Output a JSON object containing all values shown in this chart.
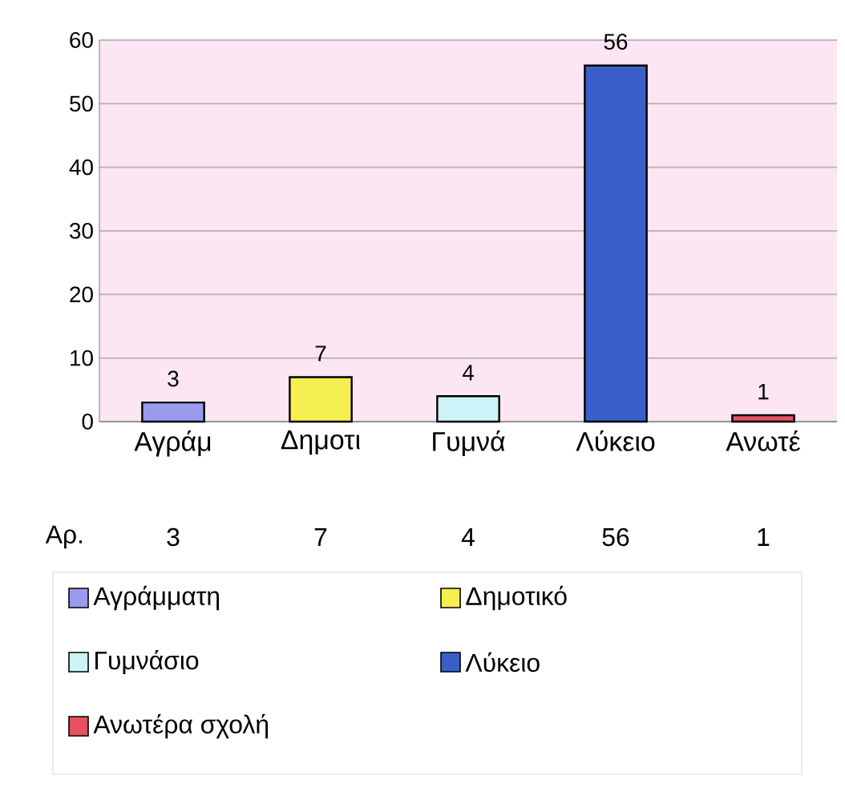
{
  "chart_data": {
    "type": "bar",
    "categories": [
      "Αγράμ",
      "Δημοτι",
      "Γυμνά",
      "Λύκειο",
      "Ανωτέ"
    ],
    "series": [
      {
        "name": "Αγράμματη",
        "color": "#9999ee",
        "values": [
          3,
          null,
          null,
          null,
          null
        ]
      },
      {
        "name": "Δημοτικό",
        "color": "#f5ef50",
        "values": [
          null,
          7,
          null,
          null,
          null
        ]
      },
      {
        "name": "Γυμνάσιο",
        "color": "#cdf3f8",
        "values": [
          null,
          null,
          4,
          null,
          null
        ]
      },
      {
        "name": "Λύκειο",
        "color": "#3a5fc8",
        "values": [
          null,
          null,
          null,
          56,
          null
        ]
      },
      {
        "name": "Ανωτέρα σχολή",
        "color": "#e85060",
        "values": [
          null,
          null,
          null,
          null,
          1
        ]
      }
    ],
    "ylim": [
      0,
      60
    ],
    "yticks": [
      0,
      10,
      20,
      30,
      40,
      50,
      60
    ],
    "grid": "y",
    "legend": "bottom",
    "data_labels": true,
    "annotations": [
      "Αρ.",
      "3",
      "7",
      "4",
      "56",
      "1"
    ]
  }
}
